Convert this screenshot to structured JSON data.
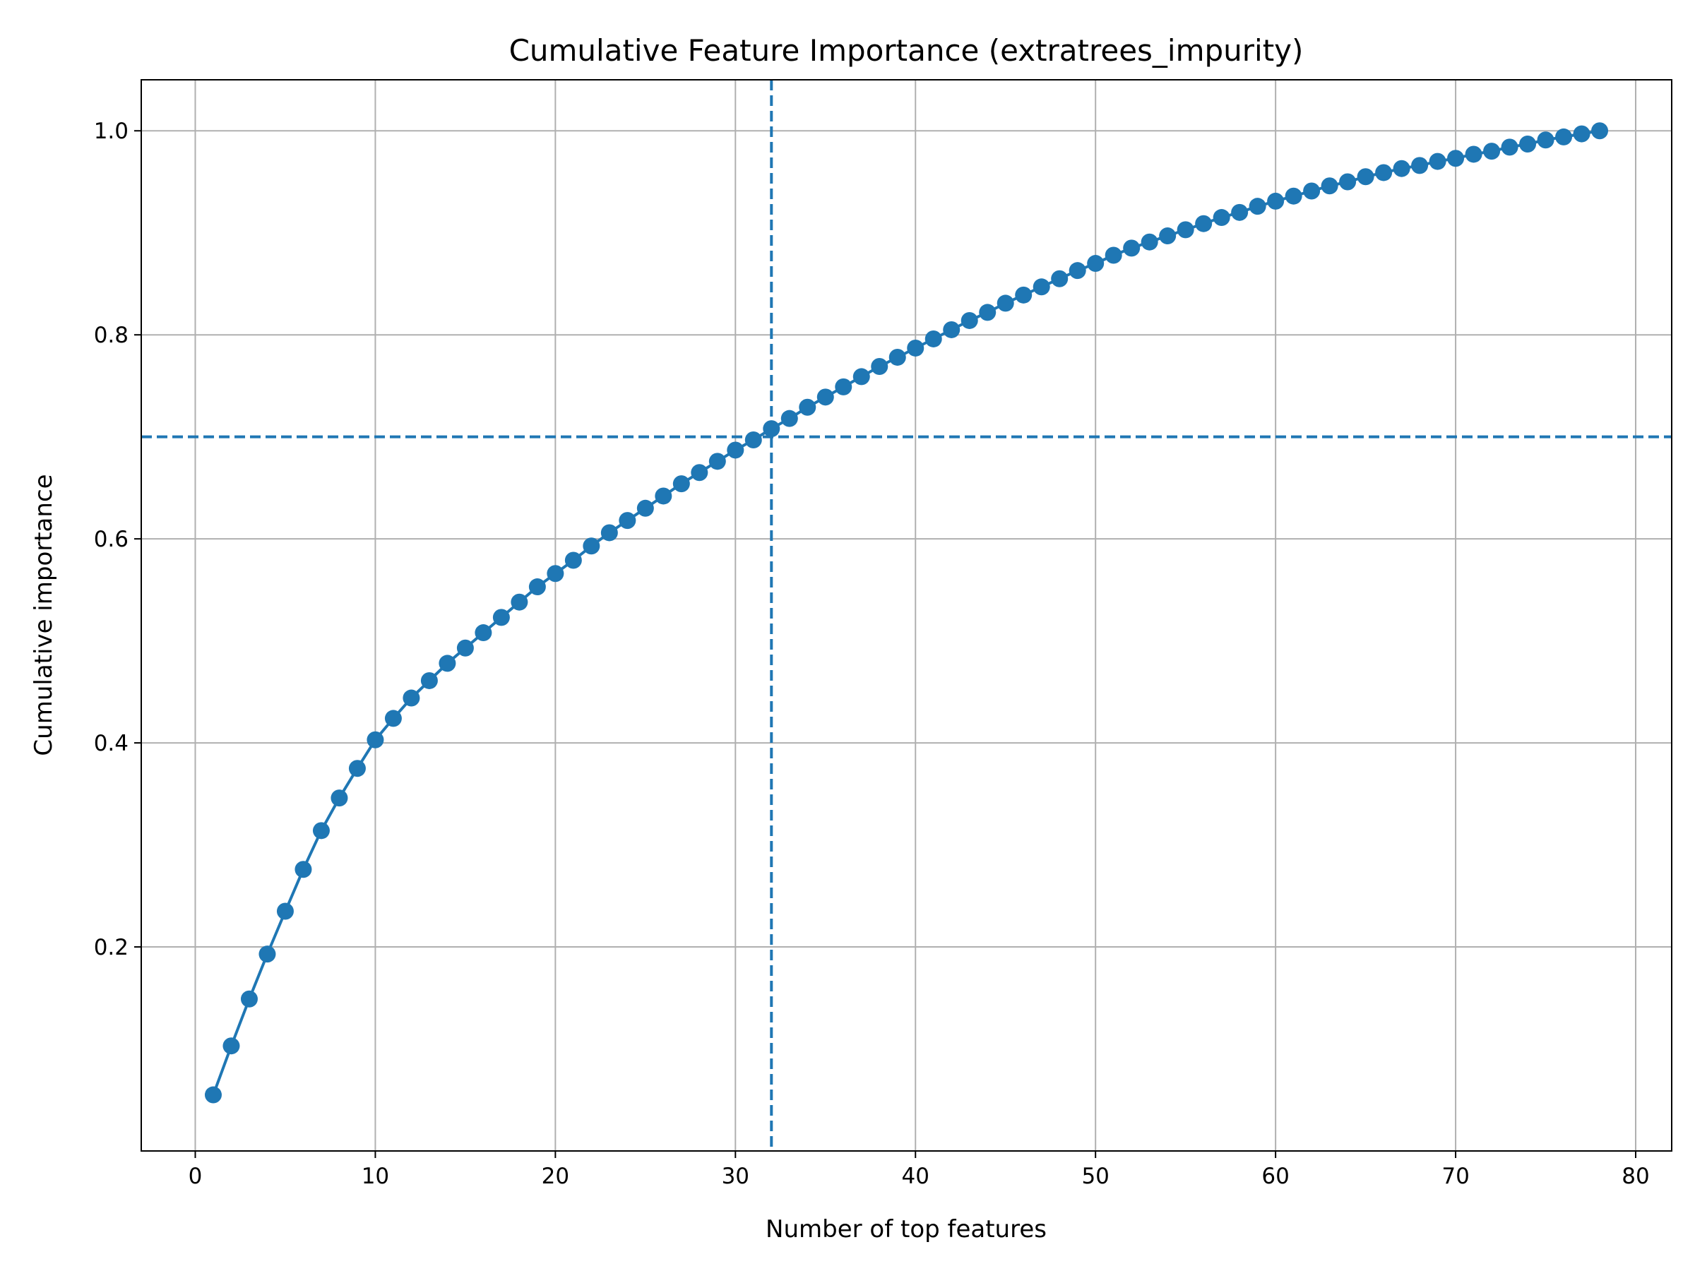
{
  "chart_data": {
    "type": "line",
    "title": "Cumulative Feature Importance (extratrees_impurity)",
    "xlabel": "Number of top features",
    "ylabel": "Cumulative importance",
    "xlim": [
      -3,
      82
    ],
    "ylim": [
      0.0,
      1.05
    ],
    "xticks": [
      0,
      10,
      20,
      30,
      40,
      50,
      60,
      70,
      80
    ],
    "yticks": [
      0.2,
      0.4,
      0.6,
      0.8,
      1.0
    ],
    "xtick_labels": [
      "0",
      "10",
      "20",
      "30",
      "40",
      "50",
      "60",
      "70",
      "80"
    ],
    "ytick_labels": [
      "0.2",
      "0.4",
      "0.6",
      "0.8",
      "1.0"
    ],
    "grid": true,
    "legend": "none",
    "colors": {
      "series": "#1f77b4",
      "grid": "#b0b0b0",
      "axes": "#000000"
    },
    "reference_lines": {
      "vertical_x": 32,
      "horizontal_y": 0.7,
      "style": "dashed"
    },
    "series": [
      {
        "marker": "circle",
        "x": [
          1,
          2,
          3,
          4,
          5,
          6,
          7,
          8,
          9,
          10,
          11,
          12,
          13,
          14,
          15,
          16,
          17,
          18,
          19,
          20,
          21,
          22,
          23,
          24,
          25,
          26,
          27,
          28,
          29,
          30,
          31,
          32,
          33,
          34,
          35,
          36,
          37,
          38,
          39,
          40,
          41,
          42,
          43,
          44,
          45,
          46,
          47,
          48,
          49,
          50,
          51,
          52,
          53,
          54,
          55,
          56,
          57,
          58,
          59,
          60,
          61,
          62,
          63,
          64,
          65,
          66,
          67,
          68,
          69,
          70,
          71,
          72,
          73,
          74,
          75,
          76,
          77,
          78
        ],
        "y": [
          0.055,
          0.103,
          0.149,
          0.193,
          0.235,
          0.276,
          0.314,
          0.346,
          0.375,
          0.403,
          0.424,
          0.444,
          0.461,
          0.478,
          0.493,
          0.508,
          0.523,
          0.538,
          0.553,
          0.566,
          0.579,
          0.593,
          0.606,
          0.618,
          0.63,
          0.642,
          0.654,
          0.665,
          0.676,
          0.687,
          0.697,
          0.708,
          0.718,
          0.729,
          0.739,
          0.749,
          0.759,
          0.769,
          0.778,
          0.787,
          0.796,
          0.805,
          0.814,
          0.822,
          0.831,
          0.839,
          0.847,
          0.855,
          0.863,
          0.87,
          0.878,
          0.885,
          0.891,
          0.897,
          0.903,
          0.909,
          0.915,
          0.92,
          0.926,
          0.931,
          0.936,
          0.941,
          0.946,
          0.95,
          0.955,
          0.959,
          0.963,
          0.966,
          0.97,
          0.973,
          0.977,
          0.98,
          0.984,
          0.987,
          0.991,
          0.994,
          0.997,
          1.0
        ]
      }
    ]
  }
}
